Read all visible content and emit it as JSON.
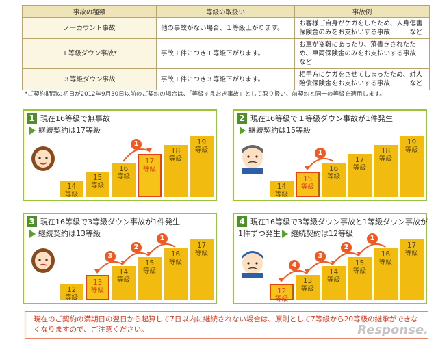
{
  "table": {
    "headers": [
      "事故の種類",
      "等級の取扱い",
      "事故例"
    ],
    "rows": [
      {
        "type": "ノーカウント事故",
        "rule": "他の事故がない場合、１等級上がります。",
        "example": "お客様ご自身がケガをしたため、人身傷害保険金のみをお支払いする事故　　　など"
      },
      {
        "type": "１等級ダウン事故*",
        "rule": "事故１件につき１等級下がります。",
        "example": "お車が盗難にあったり、落書きされたため、車両保険金のみをお支払いする事故　など"
      },
      {
        "type": "３等級ダウン事故",
        "rule": "事故１件につき３等級下がります。",
        "example": "相手方にケガをさせてしまったため、対人賠償保険金をお支払いする事故　　　など"
      }
    ]
  },
  "note": "*ご契約期間の初日が2012年9月30日以前のご契約の場合は、「等級すえおき事故」として取り扱い、前契約と同一の等級を適用します。",
  "grade_unit": "等級",
  "panels": [
    {
      "num": "1",
      "title": "現在16等級で無事故",
      "line2_text": "継続契約は17等級",
      "bars": [
        14,
        15,
        16,
        17,
        18,
        19
      ],
      "highlight": 17,
      "current": 16,
      "bubbles": [
        "1"
      ]
    },
    {
      "num": "2",
      "title": "現在16等級で１等級ダウン事故が1件発生",
      "line2_text": "継続契約は15等級",
      "bars": [
        14,
        15,
        16,
        17,
        18,
        19
      ],
      "highlight": 15,
      "current": 16,
      "bubbles": [
        "1"
      ]
    },
    {
      "num": "3",
      "title": "現在16等級で3等級ダウン事故が1件発生",
      "line2_text": "継続契約は13等級",
      "bars": [
        12,
        13,
        14,
        15,
        16,
        17
      ],
      "highlight": 13,
      "current": 16,
      "bubbles": [
        "3",
        "2",
        "1"
      ]
    },
    {
      "num": "4",
      "title": "現在16等級で3等級ダウン事故と1等級ダウン事故が",
      "line2_prefix": "1件ずつ発生",
      "line2_text": "継続契約は12等級",
      "bars": [
        12,
        13,
        14,
        15,
        16,
        17
      ],
      "highlight": 12,
      "current": 16,
      "bubbles": [
        "4",
        "3",
        "2",
        "1"
      ]
    }
  ],
  "warning": "現在のご契約の満期日の翌日から起算して7日以内に継続されない場合は、原則として7等級から20等級の継承ができなくなりますので、ご注意ください。",
  "watermark": "Response.",
  "colors": {
    "bar": "#f2bb10",
    "highlight_border": "#e84013",
    "panel_border": "#9cc43b",
    "number_bg": "#4f8f2a",
    "bubble": "#ef5a24",
    "warning_text": "#d9381a"
  }
}
